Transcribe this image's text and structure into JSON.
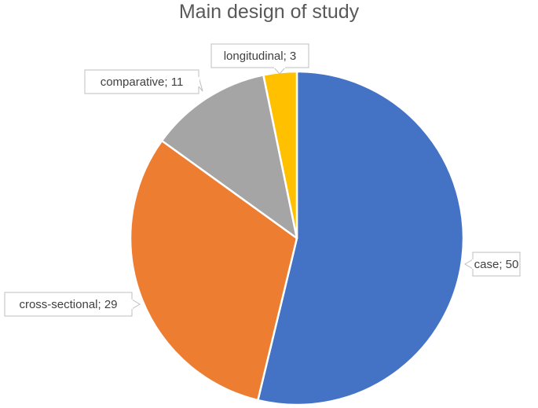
{
  "chart_data": {
    "type": "pie",
    "title": "Main design of study",
    "slices": [
      {
        "label": "case",
        "value": 50,
        "color": "#4472C4",
        "data_label": "case; 50"
      },
      {
        "label": "cross-sectional",
        "value": 29,
        "color": "#ED7D31",
        "data_label": "cross-sectional; 29"
      },
      {
        "label": "comparative",
        "value": 11,
        "color": "#A5A5A5",
        "data_label": "comparative; 11"
      },
      {
        "label": "longitudinal",
        "value": 3,
        "color": "#FFC000",
        "data_label": "longitudinal; 3"
      }
    ],
    "start_angle_deg": 0,
    "direction": "clockwise"
  }
}
